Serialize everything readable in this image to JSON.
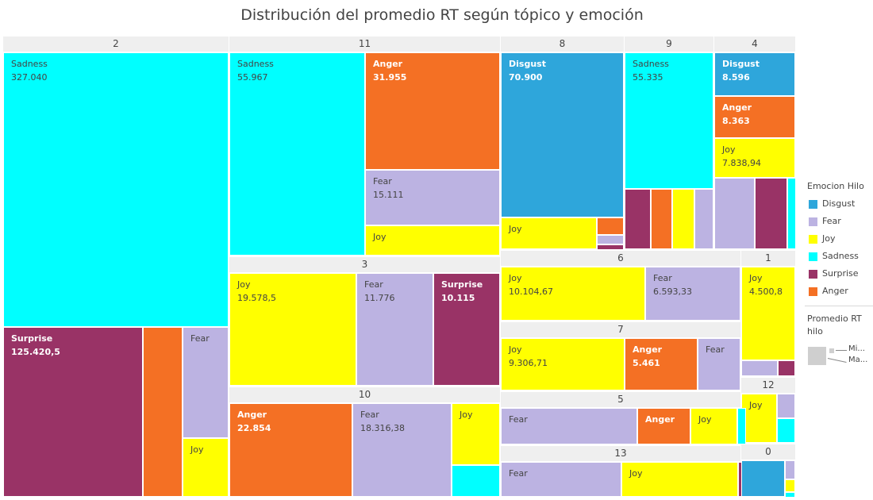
{
  "chart_data": {
    "type": "treemap",
    "title": "Distribución del promedio RT según tópico y emoción",
    "legend_title": "Emocion Hilo",
    "legend_position": "right",
    "size_legend_title": "Promedio RT hilo",
    "size_legend_min": "Mi...",
    "size_legend_max": "Ma...",
    "emotions": [
      {
        "name": "Disgust",
        "color": "#2ea6db"
      },
      {
        "name": "Fear",
        "color": "#bcb3e2"
      },
      {
        "name": "Joy",
        "color": "#ffff00"
      },
      {
        "name": "Sadness",
        "color": "#00ffff"
      },
      {
        "name": "Surprise",
        "color": "#993366"
      },
      {
        "name": "Anger",
        "color": "#f47024"
      }
    ],
    "groups": [
      {
        "topic": "2",
        "cells": [
          {
            "emotion": "Sadness",
            "value": 327040,
            "label": "Sadness",
            "value_label": "327.040"
          },
          {
            "emotion": "Surprise",
            "value": 125420.5,
            "label": "Surprise",
            "value_label": "125.420,5"
          },
          {
            "emotion": "Anger",
            "value": 25000,
            "label": "",
            "value_label": ""
          },
          {
            "emotion": "Fear",
            "value": 35000,
            "label": "Fear",
            "value_label": ""
          },
          {
            "emotion": "Joy",
            "value": 18000,
            "label": "Joy",
            "value_label": ""
          }
        ]
      },
      {
        "topic": "11",
        "cells": [
          {
            "emotion": "Sadness",
            "value": 55967,
            "label": "Sadness",
            "value_label": "55.967"
          },
          {
            "emotion": "Anger",
            "value": 31955,
            "label": "Anger",
            "value_label": "31.955"
          },
          {
            "emotion": "Fear",
            "value": 15111,
            "label": "Fear",
            "value_label": "15.111"
          },
          {
            "emotion": "Joy",
            "value": 8000,
            "label": "Joy",
            "value_label": ""
          }
        ]
      },
      {
        "topic": "3",
        "cells": [
          {
            "emotion": "Joy",
            "value": 19578.5,
            "label": "Joy",
            "value_label": "19.578,5"
          },
          {
            "emotion": "Fear",
            "value": 11776,
            "label": "Fear",
            "value_label": "11.776"
          },
          {
            "emotion": "Surprise",
            "value": 10115,
            "label": "Surprise",
            "value_label": "10.115"
          }
        ]
      },
      {
        "topic": "10",
        "cells": [
          {
            "emotion": "Anger",
            "value": 22854,
            "label": "Anger",
            "value_label": "22.854"
          },
          {
            "emotion": "Fear",
            "value": 18316.38,
            "label": "Fear",
            "value_label": "18.316,38"
          },
          {
            "emotion": "Joy",
            "value": 6000,
            "label": "Joy",
            "value_label": ""
          },
          {
            "emotion": "Sadness",
            "value": 2900,
            "label": "",
            "value_label": ""
          }
        ]
      },
      {
        "topic": "8",
        "cells": [
          {
            "emotion": "Disgust",
            "value": 70900,
            "label": "Disgust",
            "value_label": "70.900"
          },
          {
            "emotion": "Joy",
            "value": 16000,
            "label": "Joy",
            "value_label": ""
          },
          {
            "emotion": "Anger",
            "value": 1900,
            "label": "",
            "value_label": ""
          },
          {
            "emotion": "Fear",
            "value": 1300,
            "label": "",
            "value_label": ""
          },
          {
            "emotion": "Surprise",
            "value": 500,
            "label": "",
            "value_label": ""
          }
        ]
      },
      {
        "topic": "9",
        "cells": [
          {
            "emotion": "Sadness",
            "value": 55335,
            "label": "Sadness",
            "value_label": "55.335"
          },
          {
            "emotion": "Surprise",
            "value": 8000,
            "label": "",
            "value_label": ""
          },
          {
            "emotion": "Anger",
            "value": 6600,
            "label": "",
            "value_label": ""
          },
          {
            "emotion": "Joy",
            "value": 7000,
            "label": "",
            "value_label": ""
          },
          {
            "emotion": "Fear",
            "value": 5500,
            "label": "",
            "value_label": ""
          }
        ]
      },
      {
        "topic": "4",
        "cells": [
          {
            "emotion": "Disgust",
            "value": 8596,
            "label": "Disgust",
            "value_label": "8.596"
          },
          {
            "emotion": "Anger",
            "value": 8363,
            "label": "Anger",
            "value_label": "8.363"
          },
          {
            "emotion": "Joy",
            "value": 7838.94,
            "label": "Joy",
            "value_label": "7.838,94"
          },
          {
            "emotion": "Fear",
            "value": 7800,
            "label": "",
            "value_label": ""
          },
          {
            "emotion": "Surprise",
            "value": 6200,
            "label": "",
            "value_label": ""
          },
          {
            "emotion": "Sadness",
            "value": 1300,
            "label": "",
            "value_label": ""
          }
        ]
      },
      {
        "topic": "6",
        "cells": [
          {
            "emotion": "Joy",
            "value": 10104.67,
            "label": "Joy",
            "value_label": "10.104,67"
          },
          {
            "emotion": "Fear",
            "value": 6593.33,
            "label": "Fear",
            "value_label": "6.593,33"
          }
        ]
      },
      {
        "topic": "1",
        "cells": [
          {
            "emotion": "Joy",
            "value": 4500.8,
            "label": "Joy",
            "value_label": "4.500,8"
          },
          {
            "emotion": "Fear",
            "value": 600,
            "label": "",
            "value_label": ""
          },
          {
            "emotion": "Surprise",
            "value": 280,
            "label": "",
            "value_label": ""
          }
        ]
      },
      {
        "topic": "7",
        "cells": [
          {
            "emotion": "Joy",
            "value": 9306.71,
            "label": "Joy",
            "value_label": "9.306,71"
          },
          {
            "emotion": "Anger",
            "value": 5461,
            "label": "Anger",
            "value_label": "5.461"
          },
          {
            "emotion": "Fear",
            "value": 3100,
            "label": "Fear",
            "value_label": ""
          }
        ]
      },
      {
        "topic": "12",
        "cells": [
          {
            "emotion": "Joy",
            "value": 2300,
            "label": "Joy",
            "value_label": ""
          },
          {
            "emotion": "Fear",
            "value": 700,
            "label": "",
            "value_label": ""
          },
          {
            "emotion": "Sadness",
            "value": 650,
            "label": "",
            "value_label": ""
          }
        ]
      },
      {
        "topic": "5",
        "cells": [
          {
            "emotion": "Fear",
            "value": 6500,
            "label": "Fear",
            "value_label": ""
          },
          {
            "emotion": "Anger",
            "value": 2900,
            "label": "Anger",
            "value_label": ""
          },
          {
            "emotion": "Joy",
            "value": 2600,
            "label": "Joy",
            "value_label": ""
          },
          {
            "emotion": "Sadness",
            "value": 150,
            "label": "",
            "value_label": ""
          }
        ]
      },
      {
        "topic": "13",
        "cells": [
          {
            "emotion": "Fear",
            "value": 5400,
            "label": "Fear",
            "value_label": ""
          },
          {
            "emotion": "Joy",
            "value": 5300,
            "label": "Joy",
            "value_label": ""
          },
          {
            "emotion": "Surprise",
            "value": 80,
            "label": "",
            "value_label": ""
          }
        ]
      },
      {
        "topic": "0",
        "cells": [
          {
            "emotion": "Disgust",
            "value": 1100,
            "label": "",
            "value_label": ""
          },
          {
            "emotion": "Fear",
            "value": 220,
            "label": "",
            "value_label": ""
          },
          {
            "emotion": "Joy",
            "value": 140,
            "label": "",
            "value_label": ""
          },
          {
            "emotion": "Sadness",
            "value": 100,
            "label": "",
            "value_label": ""
          }
        ]
      }
    ]
  }
}
